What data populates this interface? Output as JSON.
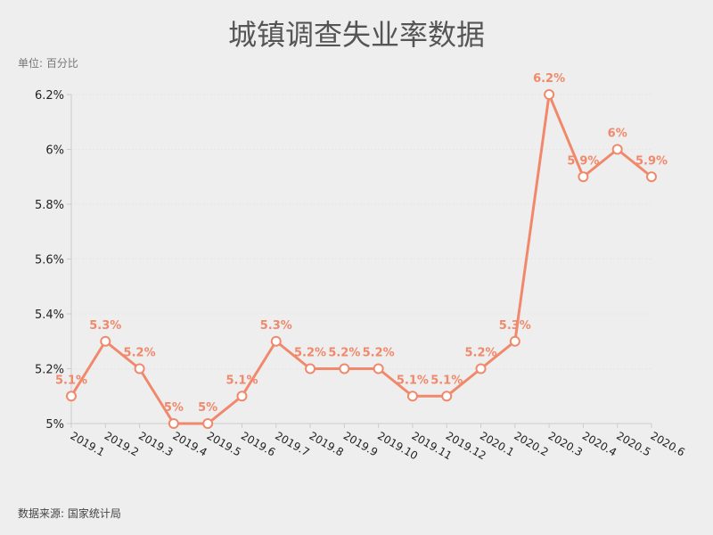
{
  "chart_data": {
    "type": "line",
    "title": "城镇调查失业率数据",
    "unit_label": "单位: 百分比",
    "source": "数据来源: 国家统计局",
    "categories": [
      "2019.1",
      "2019.2",
      "2019.3",
      "2019.4",
      "2019.5",
      "2019.6",
      "2019.7",
      "2019.8",
      "2019.9",
      "2019.10",
      "2019.11",
      "2019.12",
      "2020.1",
      "2020.2",
      "2020.3",
      "2020.4",
      "2020.5",
      "2020.6"
    ],
    "values": [
      5.1,
      5.3,
      5.2,
      5.0,
      5.0,
      5.1,
      5.3,
      5.2,
      5.2,
      5.2,
      5.1,
      5.1,
      5.2,
      5.3,
      6.2,
      5.9,
      6.0,
      5.9
    ],
    "data_labels": [
      "5.1%",
      "5.3%",
      "5.2%",
      "5%",
      "5%",
      "5.1%",
      "5.3%",
      "5.2%",
      "5.2%",
      "5.2%",
      "5.1%",
      "5.1%",
      "5.2%",
      "5.3%",
      "6.2%",
      "5.9%",
      "6%",
      "5.9%"
    ],
    "y_ticks": [
      "5%",
      "5.2%",
      "5.4%",
      "5.6%",
      "5.8%",
      "6%",
      "6.2%"
    ],
    "y_tick_values": [
      5.0,
      5.2,
      5.4,
      5.6,
      5.8,
      6.0,
      6.2
    ],
    "ylim": [
      5.0,
      6.2
    ],
    "grid": true,
    "color": "#f0896b"
  }
}
